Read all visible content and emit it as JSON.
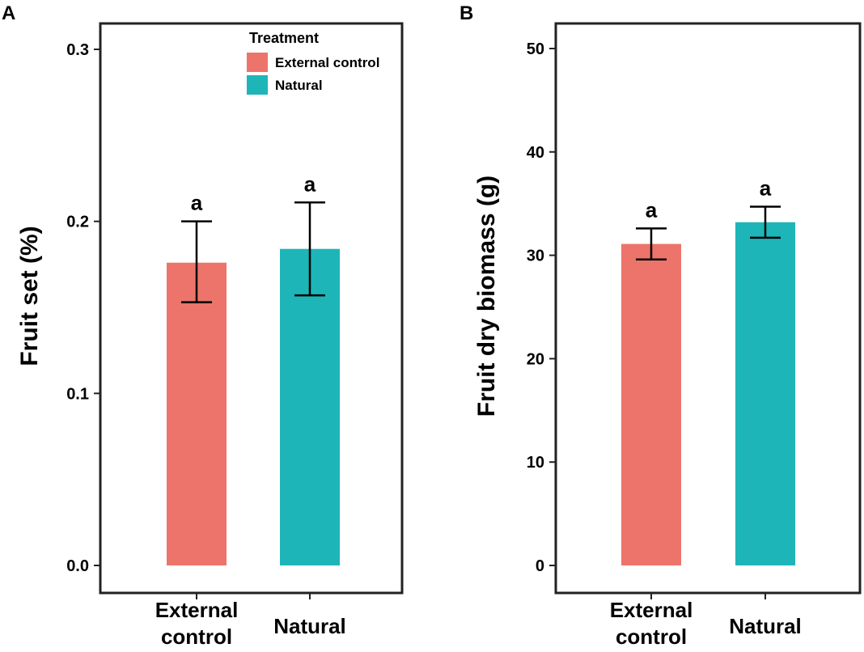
{
  "chart_data": [
    {
      "type": "bar",
      "panel": "A",
      "title": "",
      "xlabel": "",
      "ylabel": "Fruit set (%)",
      "ylim": [
        0,
        0.3
      ],
      "yticks": [
        0.0,
        0.1,
        0.2,
        0.3
      ],
      "ytick_labels": [
        "0.0",
        "0.1",
        "0.2",
        "0.3"
      ],
      "categories": [
        "External\ncontrol",
        "Natural"
      ],
      "values": [
        0.176,
        0.184
      ],
      "error_low": [
        0.153,
        0.157
      ],
      "error_high": [
        0.2,
        0.211
      ],
      "sig_labels": [
        "a",
        "a"
      ],
      "colors": [
        "#EC746A",
        "#1EB5B8"
      ],
      "legend": {
        "title": "Treatment",
        "entries": [
          "External control",
          "Natural"
        ],
        "placement": "top-right"
      }
    },
    {
      "type": "bar",
      "panel": "B",
      "title": "",
      "xlabel": "",
      "ylabel": "Fruit dry biomass (g)",
      "ylim": [
        0,
        50
      ],
      "yticks": [
        0,
        10,
        20,
        30,
        40,
        50
      ],
      "ytick_labels": [
        "0",
        "10",
        "20",
        "30",
        "40",
        "50"
      ],
      "categories": [
        "External\ncontrol",
        "Natural"
      ],
      "values": [
        31.1,
        33.2
      ],
      "error_low": [
        29.6,
        31.7
      ],
      "error_high": [
        32.6,
        34.7
      ],
      "sig_labels": [
        "a",
        "a"
      ],
      "colors": [
        "#EC746A",
        "#1EB5B8"
      ]
    }
  ]
}
